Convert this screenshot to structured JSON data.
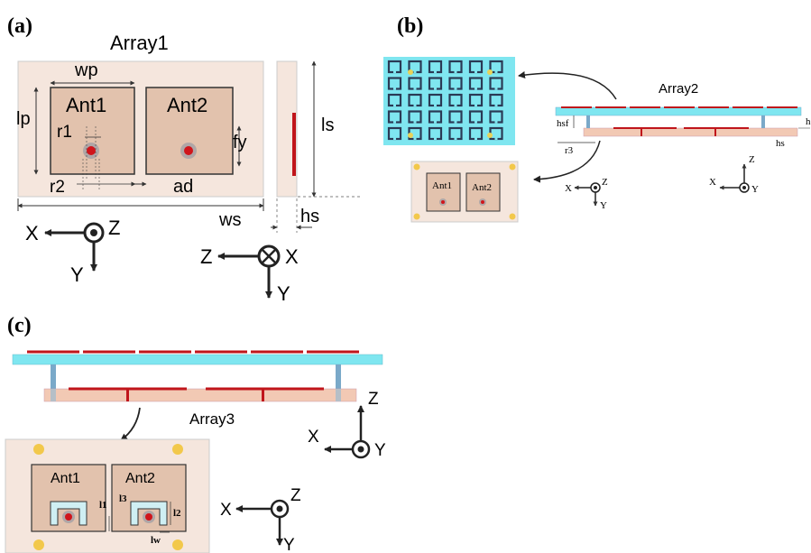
{
  "panels": {
    "a": {
      "label": "(a)",
      "title": "Array1",
      "ant1": "Ant1",
      "ant2": "Ant2",
      "dims": {
        "wp": "wp",
        "lp": "lp",
        "r1": "r1",
        "r2": "r2",
        "fy": "fy",
        "ad": "ad",
        "ls": "ls",
        "ws": "ws",
        "hs": "hs"
      },
      "axes1": {
        "x": "X",
        "y": "Y",
        "z": "Z"
      },
      "axes2": {
        "z": "Z",
        "x": "X",
        "y": "Y"
      }
    },
    "b": {
      "label": "(b)",
      "title": "Array2",
      "ant1": "Ant1",
      "ant2": "Ant2",
      "dims": {
        "hsf": "hsf",
        "r3": "r3",
        "hs": "hs",
        "h": "h"
      },
      "axes1": {
        "x": "X",
        "z": "Z",
        "y": "Y"
      },
      "axes2": {
        "x": "X",
        "z": "Z",
        "y": "Y"
      }
    },
    "c": {
      "label": "(c)",
      "title": "Array3",
      "ant1": "Ant1",
      "ant2": "Ant2",
      "dims": {
        "l1": "l1",
        "l2": "l2",
        "l3": "l3",
        "lw": "lw"
      },
      "axes1": {
        "x": "X",
        "z": "Z",
        "y": "Y"
      },
      "axes2": {
        "x": "X",
        "z": "Z",
        "y": "Y"
      }
    }
  },
  "colors": {
    "substrate": "#f5e6dd",
    "patch": "#e2c2ad",
    "cyan": "#7fe6f0",
    "red": "#c0151b",
    "yellow": "#f2c84b",
    "post": "#7aa9c9",
    "dark": "#222222"
  }
}
